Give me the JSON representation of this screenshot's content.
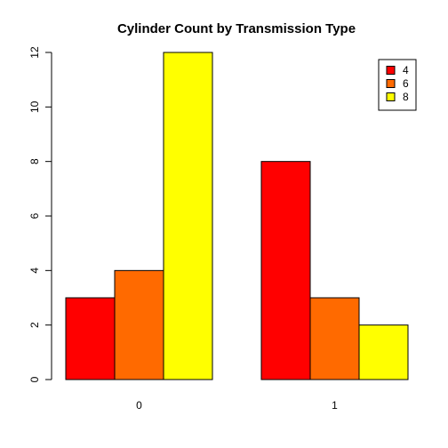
{
  "chart_data": {
    "type": "bar",
    "title": "Cylinder Count by Transmission Type",
    "xlabel": "",
    "ylabel": "",
    "categories": [
      "0",
      "1"
    ],
    "series": [
      {
        "name": "4",
        "color": "#ff0000",
        "values": [
          3,
          8
        ]
      },
      {
        "name": "6",
        "color": "#ff6a00",
        "values": [
          4,
          3
        ]
      },
      {
        "name": "8",
        "color": "#ffff00",
        "values": [
          12,
          2
        ]
      }
    ],
    "ylim": [
      0,
      12
    ],
    "yticks": [
      "0",
      "2",
      "4",
      "6",
      "8",
      "10",
      "12"
    ],
    "grouping": "beside",
    "grid": false,
    "legend": {
      "position": "top-right",
      "title": ""
    }
  }
}
